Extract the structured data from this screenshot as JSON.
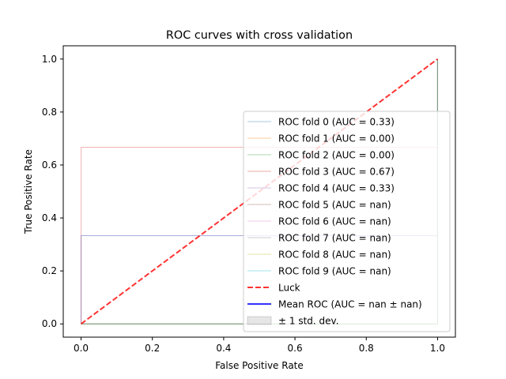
{
  "chart_data": {
    "type": "line",
    "title": "ROC curves with cross validation",
    "xlabel": "False Positive Rate",
    "ylabel": "True Positive Rate",
    "xlim": [
      -0.05,
      1.05
    ],
    "ylim": [
      -0.05,
      1.05
    ],
    "xticks": [
      0.0,
      0.2,
      0.4,
      0.6,
      0.8,
      1.0
    ],
    "yticks": [
      0.0,
      0.2,
      0.4,
      0.6,
      0.8,
      1.0
    ],
    "xtick_labels": [
      "0.0",
      "0.2",
      "0.4",
      "0.6",
      "0.8",
      "1.0"
    ],
    "ytick_labels": [
      "0.0",
      "0.2",
      "0.4",
      "0.6",
      "0.8",
      "1.0"
    ],
    "grid": false,
    "legend_position": "center-right",
    "series": [
      {
        "name": "ROC fold 0 (AUC = 0.33)",
        "color": "#1f77b4",
        "x": [
          0,
          0,
          1,
          1
        ],
        "y": [
          0,
          0.333,
          0.333,
          1.0
        ]
      },
      {
        "name": "ROC fold 1 (AUC = 0.00)",
        "color": "#ff7f0e",
        "x": [
          0,
          1,
          1
        ],
        "y": [
          0,
          0,
          1.0
        ]
      },
      {
        "name": "ROC fold 2 (AUC = 0.00)",
        "color": "#2ca02c",
        "x": [
          0,
          1,
          1
        ],
        "y": [
          0,
          0,
          1.0
        ]
      },
      {
        "name": "ROC fold 3 (AUC = 0.67)",
        "color": "#d62728",
        "x": [
          0,
          0,
          1,
          1
        ],
        "y": [
          0,
          0.667,
          0.667,
          1.0
        ]
      },
      {
        "name": "ROC fold 4 (AUC = 0.33)",
        "color": "#9467bd",
        "x": [
          0,
          0,
          1,
          1
        ],
        "y": [
          0,
          0.333,
          0.333,
          1.0
        ]
      },
      {
        "name": "ROC fold 5 (AUC = nan)",
        "color": "#8c564b",
        "x": [
          0,
          1,
          1
        ],
        "y": [
          0,
          0,
          1.0
        ]
      },
      {
        "name": "ROC fold 6 (AUC = nan)",
        "color": "#e377c2",
        "x": [
          0,
          1,
          1
        ],
        "y": [
          0,
          0,
          1.0
        ]
      },
      {
        "name": "ROC fold 7 (AUC = nan)",
        "color": "#7f7f7f",
        "x": [
          0,
          1,
          1
        ],
        "y": [
          0,
          0,
          1.0
        ]
      },
      {
        "name": "ROC fold 8 (AUC = nan)",
        "color": "#bcbd22",
        "x": [
          0,
          1,
          1
        ],
        "y": [
          0,
          0,
          1.0
        ]
      },
      {
        "name": "ROC fold 9 (AUC = nan)",
        "color": "#17becf",
        "x": [
          0,
          1,
          1
        ],
        "y": [
          0,
          0,
          1.0
        ]
      }
    ],
    "luck": {
      "name": "Luck",
      "color": "#ff0000",
      "x": [
        0,
        1
      ],
      "y": [
        0,
        1
      ]
    },
    "mean": {
      "name": "Mean ROC (AUC = nan ± nan)",
      "color": "#0000ff"
    },
    "std_band": {
      "name": "± 1 std. dev.",
      "color": "#808080"
    }
  }
}
